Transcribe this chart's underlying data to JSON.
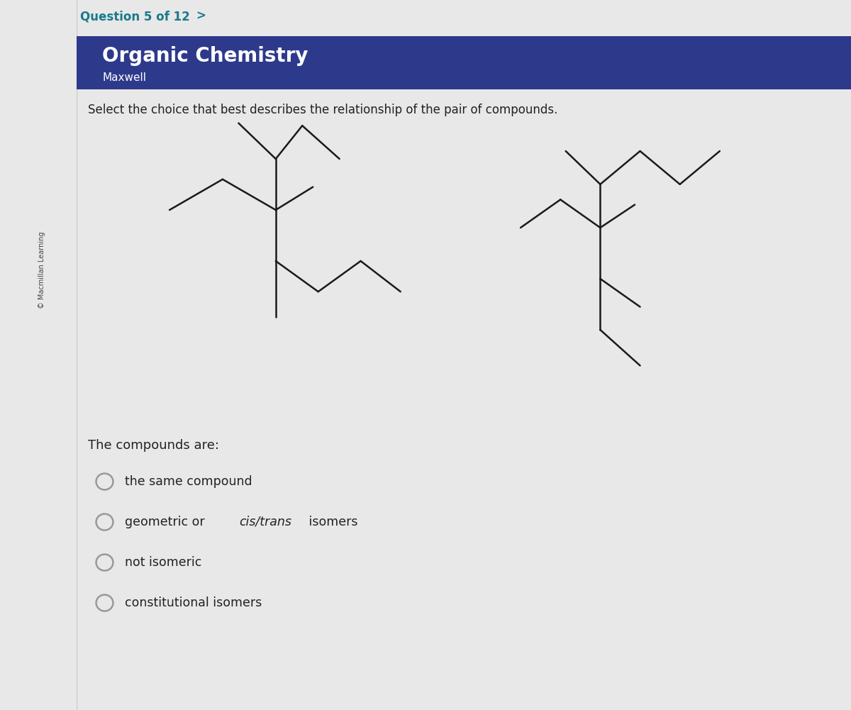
{
  "title_question": "Question 5 of 12",
  "title_arrow": ">",
  "header_title": "Organic Chemistry",
  "header_subtitle": "Maxwell",
  "header_bg_color": "#2d3a8c",
  "header_text_color": "#ffffff",
  "question_text": "Select the choice that best describes the relationship of the pair of compounds.",
  "compounds_label": "The compounds are:",
  "choices": [
    "the same compound",
    "geometric or cis/trans isomers",
    "not isomeric",
    "constitutional isomers"
  ],
  "background_color": "#e8e8e8",
  "panel_color": "#ffffff",
  "question_color": "#1a7a8a",
  "body_text_color": "#222222",
  "line_color": "#1a1a1a",
  "radio_color": "#999999"
}
